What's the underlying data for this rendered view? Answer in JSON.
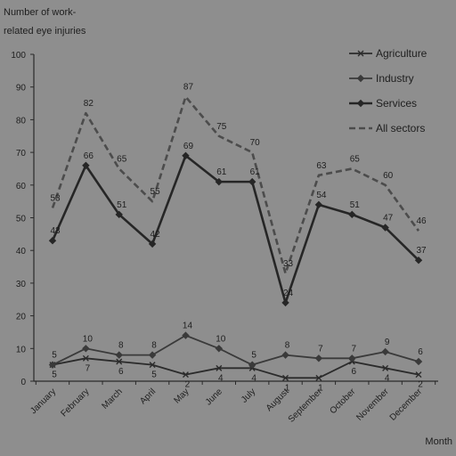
{
  "chart_data": {
    "type": "line",
    "title": "",
    "ylabel_lines": [
      "Number of work-",
      "related eye injuries"
    ],
    "xlabel": "Month",
    "ylim": [
      0,
      100
    ],
    "yticks": [
      "0",
      "10",
      "20",
      "30",
      "40",
      "50",
      "60",
      "70",
      "80",
      "90",
      "100"
    ],
    "grid": false,
    "legend_position": "top-right",
    "categories": [
      "January",
      "February",
      "March",
      "April",
      "May",
      "June",
      "July",
      "August",
      "September",
      "October",
      "November",
      "December"
    ],
    "series": [
      {
        "name": "Agriculture",
        "color": "#2b2b2b",
        "dash": "none",
        "marker": "x",
        "values": [
          5,
          7,
          6,
          5,
          2,
          4,
          4,
          1,
          1,
          6,
          4,
          2
        ],
        "labels": [
          "5",
          "7",
          "6",
          "5",
          "2",
          "4",
          "4",
          "1",
          "1",
          "6",
          "4",
          "2"
        ]
      },
      {
        "name": "Industry",
        "color": "#3a3a3a",
        "dash": "none",
        "marker": "diamond",
        "values": [
          5,
          10,
          8,
          8,
          14,
          10,
          5,
          8,
          7,
          7,
          9,
          6
        ],
        "labels": [
          "5",
          "10",
          "8",
          "8",
          "14",
          "10",
          "5",
          "8",
          "7",
          "7",
          "9",
          "6"
        ]
      },
      {
        "name": "Services",
        "color": "#262626",
        "dash": "none",
        "marker": "diamond",
        "values": [
          43,
          66,
          51,
          42,
          69,
          61,
          61,
          24,
          54,
          51,
          47,
          37
        ],
        "labels": [
          "43",
          "66",
          "51",
          "42",
          "69",
          "61",
          "61",
          "24",
          "54",
          "51",
          "47",
          "37"
        ]
      },
      {
        "name": "All sectors",
        "color": "#4c4c4c",
        "dash": "7,4",
        "marker": "none",
        "values": [
          53,
          82,
          65,
          55,
          87,
          75,
          70,
          33,
          63,
          65,
          60,
          46
        ],
        "labels": [
          "53",
          "82",
          "65",
          "55",
          "87",
          "75",
          "70",
          "33",
          "63",
          "65",
          "60",
          "46"
        ]
      }
    ]
  }
}
